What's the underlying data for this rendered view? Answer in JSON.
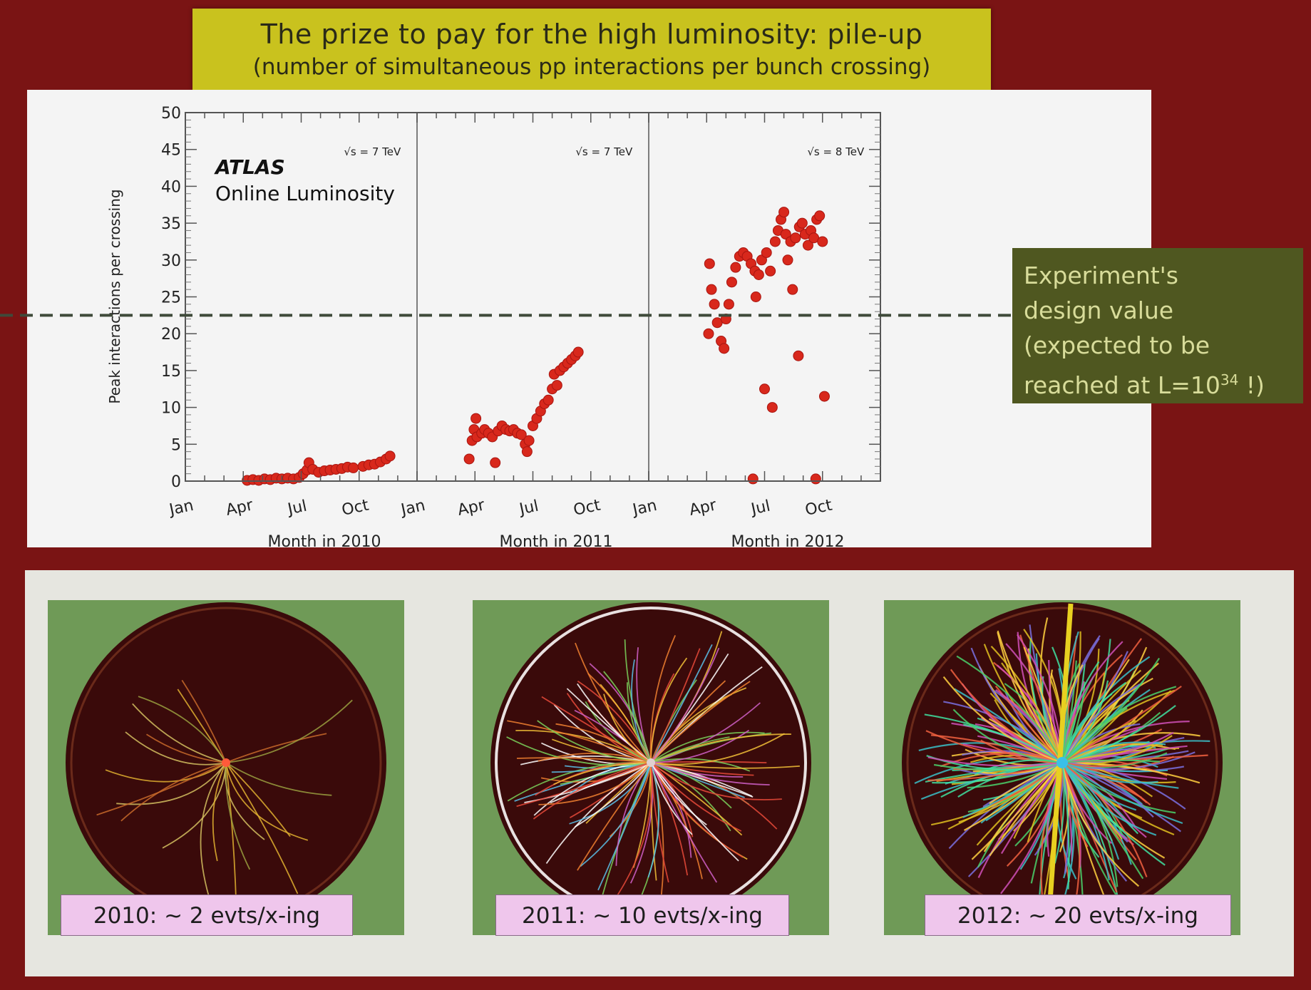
{
  "title": {
    "line1": "The prize to pay for the high luminosity: pile-up",
    "line2": "(number of simultaneous pp interactions per bunch crossing)"
  },
  "callout": {
    "line1": "Experiment's",
    "line2": "design value",
    "line3": "(expected to be",
    "line4_prefix": "reached at L=10",
    "line4_sup": "34",
    "line4_suffix": " !)"
  },
  "events": [
    {
      "label": "2010: ~ 2 evts/x-ing"
    },
    {
      "label": "2011: ~ 10 evts/x-ing"
    },
    {
      "label": "2012: ~ 20 evts/x-ing"
    }
  ],
  "colors": {
    "background": "#7a1414",
    "title_box": "#c9c21e",
    "callout_box": "#4f5720",
    "data_points": "#d8281c",
    "event_label_box": "#efc6ec"
  },
  "chart_data": {
    "type": "scatter",
    "ylabel": "Peak interactions per crossing",
    "ylim": [
      0,
      50
    ],
    "yticks": [
      0,
      5,
      10,
      15,
      20,
      25,
      30,
      35,
      40,
      45,
      50
    ],
    "reference_line": 22.5,
    "legend_text": {
      "experiment": "ATLAS",
      "subtitle": "Online Luminosity"
    },
    "panels": [
      {
        "energy": "√s = 7 TeV",
        "xlabel": "Month in 2010",
        "month_ticks": [
          "Jan",
          "Apr",
          "Jul",
          "Oct"
        ],
        "series": [
          {
            "points": [
              [
                3.2,
                0.1
              ],
              [
                3.5,
                0.2
              ],
              [
                3.8,
                0.1
              ],
              [
                4.1,
                0.3
              ],
              [
                4.4,
                0.2
              ],
              [
                4.7,
                0.4
              ],
              [
                5.0,
                0.3
              ],
              [
                5.3,
                0.4
              ],
              [
                5.6,
                0.3
              ],
              [
                5.9,
                0.5
              ],
              [
                6.1,
                1.0
              ],
              [
                6.3,
                1.5
              ],
              [
                6.4,
                2.5
              ],
              [
                6.6,
                1.6
              ],
              [
                6.9,
                1.2
              ],
              [
                7.2,
                1.4
              ],
              [
                7.5,
                1.5
              ],
              [
                7.8,
                1.6
              ],
              [
                8.1,
                1.7
              ],
              [
                8.4,
                1.9
              ],
              [
                8.7,
                1.8
              ],
              [
                9.2,
                2.0
              ],
              [
                9.5,
                2.2
              ],
              [
                9.8,
                2.3
              ],
              [
                10.1,
                2.6
              ],
              [
                10.4,
                3.0
              ],
              [
                10.6,
                3.4
              ]
            ]
          }
        ]
      },
      {
        "energy": "√s = 7 TeV",
        "xlabel": "Month in 2011",
        "month_ticks": [
          "Jan",
          "Apr",
          "Jul",
          "Oct"
        ],
        "series": [
          {
            "points": [
              [
                2.7,
                3.0
              ],
              [
                2.85,
                5.5
              ],
              [
                2.95,
                7.0
              ],
              [
                3.05,
                8.5
              ],
              [
                3.1,
                6.0
              ],
              [
                3.35,
                6.5
              ],
              [
                3.5,
                7.0
              ],
              [
                3.7,
                6.5
              ],
              [
                3.9,
                6.0
              ],
              [
                4.05,
                2.5
              ],
              [
                4.2,
                6.8
              ],
              [
                4.4,
                7.5
              ],
              [
                4.6,
                7.0
              ],
              [
                4.8,
                6.8
              ],
              [
                5.0,
                7.0
              ],
              [
                5.2,
                6.5
              ],
              [
                5.4,
                6.3
              ],
              [
                5.6,
                5.0
              ],
              [
                5.7,
                4.0
              ],
              [
                5.8,
                5.5
              ],
              [
                6.0,
                7.5
              ],
              [
                6.2,
                8.5
              ],
              [
                6.4,
                9.5
              ],
              [
                6.6,
                10.5
              ],
              [
                6.8,
                11.0
              ],
              [
                7.0,
                12.5
              ],
              [
                7.1,
                14.5
              ],
              [
                7.25,
                13.0
              ],
              [
                7.4,
                15.0
              ],
              [
                7.6,
                15.5
              ],
              [
                7.8,
                16.0
              ],
              [
                8.0,
                16.5
              ],
              [
                8.2,
                17.0
              ],
              [
                8.35,
                17.5
              ]
            ]
          }
        ]
      },
      {
        "energy": "√s = 8 TeV",
        "xlabel": "Month in 2012",
        "month_ticks": [
          "Jan",
          "Apr",
          "Jul",
          "Oct"
        ],
        "series": [
          {
            "points": [
              [
                3.1,
                20.0
              ],
              [
                3.15,
                29.5
              ],
              [
                3.25,
                26.0
              ],
              [
                3.4,
                24.0
              ],
              [
                3.55,
                21.5
              ],
              [
                3.75,
                19.0
              ],
              [
                3.9,
                18.0
              ],
              [
                4.0,
                22.0
              ],
              [
                4.15,
                24.0
              ],
              [
                4.3,
                27.0
              ],
              [
                4.5,
                29.0
              ],
              [
                4.7,
                30.5
              ],
              [
                4.9,
                31.0
              ],
              [
                5.1,
                30.5
              ],
              [
                5.3,
                29.5
              ],
              [
                5.5,
                28.5
              ],
              [
                5.55,
                25.0
              ],
              [
                5.7,
                28.0
              ],
              [
                5.85,
                30.0
              ],
              [
                6.0,
                12.5
              ],
              [
                6.1,
                31.0
              ],
              [
                6.3,
                28.5
              ],
              [
                6.4,
                10.0
              ],
              [
                6.55,
                32.5
              ],
              [
                6.7,
                34.0
              ],
              [
                6.85,
                35.5
              ],
              [
                7.0,
                36.5
              ],
              [
                7.1,
                33.5
              ],
              [
                7.2,
                30.0
              ],
              [
                7.35,
                32.5
              ],
              [
                7.45,
                26.0
              ],
              [
                7.6,
                33.0
              ],
              [
                7.75,
                17.0
              ],
              [
                7.8,
                34.5
              ],
              [
                7.95,
                35.0
              ],
              [
                8.1,
                33.5
              ],
              [
                8.25,
                32.0
              ],
              [
                8.4,
                34.0
              ],
              [
                8.55,
                33.0
              ],
              [
                8.7,
                35.5
              ],
              [
                8.85,
                36.0
              ],
              [
                9.0,
                32.5
              ],
              [
                9.1,
                11.5
              ],
              [
                5.4,
                0.3
              ],
              [
                8.65,
                0.3
              ]
            ]
          }
        ]
      }
    ]
  }
}
